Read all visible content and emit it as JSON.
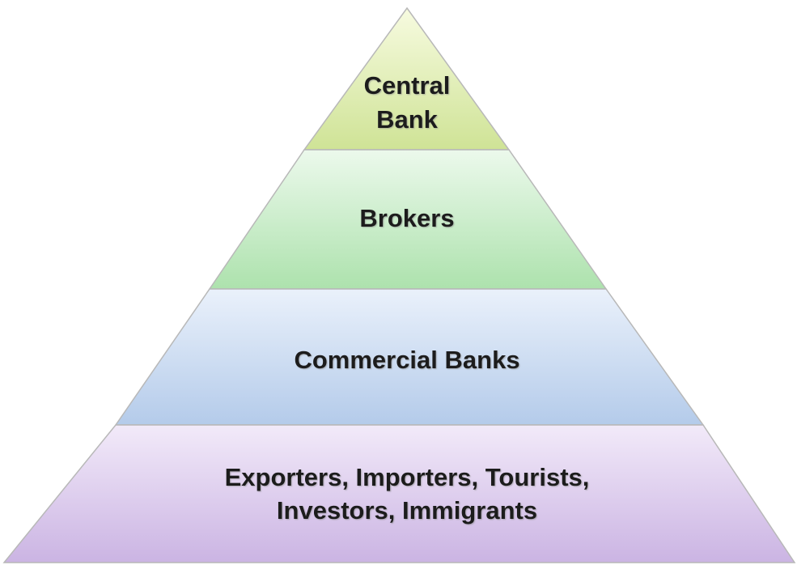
{
  "levels": [
    {
      "lines": [
        "Central",
        "Bank"
      ]
    },
    {
      "lines": [
        "Brokers"
      ]
    },
    {
      "lines": [
        "Commercial Banks"
      ]
    },
    {
      "lines": [
        "Exporters, Importers, Tourists,",
        "Investors, Immigrants"
      ]
    }
  ]
}
